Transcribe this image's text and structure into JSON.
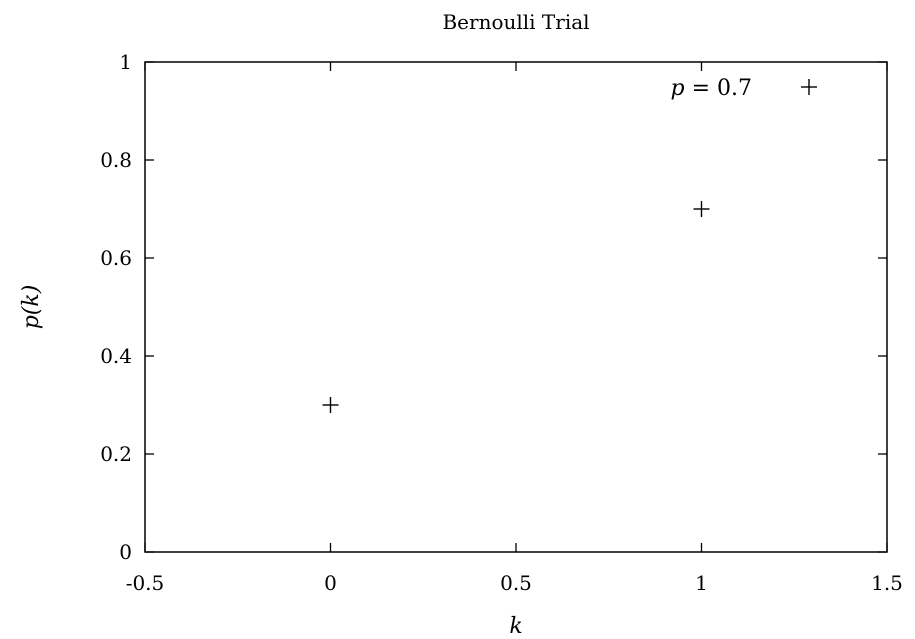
{
  "chart_data": {
    "type": "scatter",
    "title": "Bernoulli Trial",
    "xlabel": "k",
    "ylabel": "p(k)",
    "xlim": [
      -0.5,
      1.5
    ],
    "ylim": [
      0,
      1
    ],
    "x_ticks": [
      "-0.5",
      "0",
      "0.5",
      "1",
      "1.5"
    ],
    "y_ticks": [
      "0",
      "0.2",
      "0.4",
      "0.6",
      "0.8",
      "1"
    ],
    "grid": false,
    "legend_position": "top-right",
    "marker": "plus",
    "series": [
      {
        "name": "p = 0.7",
        "points": [
          {
            "x": 0,
            "y": 0.3
          },
          {
            "x": 1,
            "y": 0.7
          }
        ]
      }
    ]
  }
}
